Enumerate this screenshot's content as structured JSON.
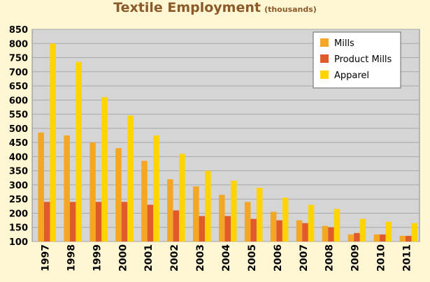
{
  "chart_data": {
    "type": "bar",
    "title": "Textile Employment",
    "subtitle": "(thousands)",
    "xlabel": "",
    "ylabel": "",
    "categories": [
      "1997",
      "1998",
      "1999",
      "2000",
      "2001",
      "2002",
      "2003",
      "2004",
      "2005",
      "2006",
      "2007",
      "2008",
      "2009",
      "2010",
      "2011"
    ],
    "ylim": [
      100,
      850
    ],
    "yticks": [
      100,
      150,
      200,
      250,
      300,
      350,
      400,
      450,
      500,
      550,
      600,
      650,
      700,
      750,
      800,
      850
    ],
    "grid": true,
    "legend_position": "top-right",
    "series": [
      {
        "name": "Mills",
        "color": "#f5a623",
        "values": [
          485,
          475,
          450,
          430,
          385,
          320,
          295,
          265,
          240,
          205,
          175,
          155,
          125,
          125,
          120
        ]
      },
      {
        "name": "Product Mills",
        "color": "#e05a2b",
        "values": [
          240,
          240,
          240,
          240,
          230,
          210,
          190,
          190,
          180,
          175,
          165,
          150,
          130,
          125,
          120
        ]
      },
      {
        "name": "Apparel",
        "color": "#ffd400",
        "values": [
          800,
          735,
          610,
          545,
          475,
          410,
          350,
          315,
          290,
          255,
          230,
          215,
          180,
          170,
          165
        ]
      }
    ]
  }
}
